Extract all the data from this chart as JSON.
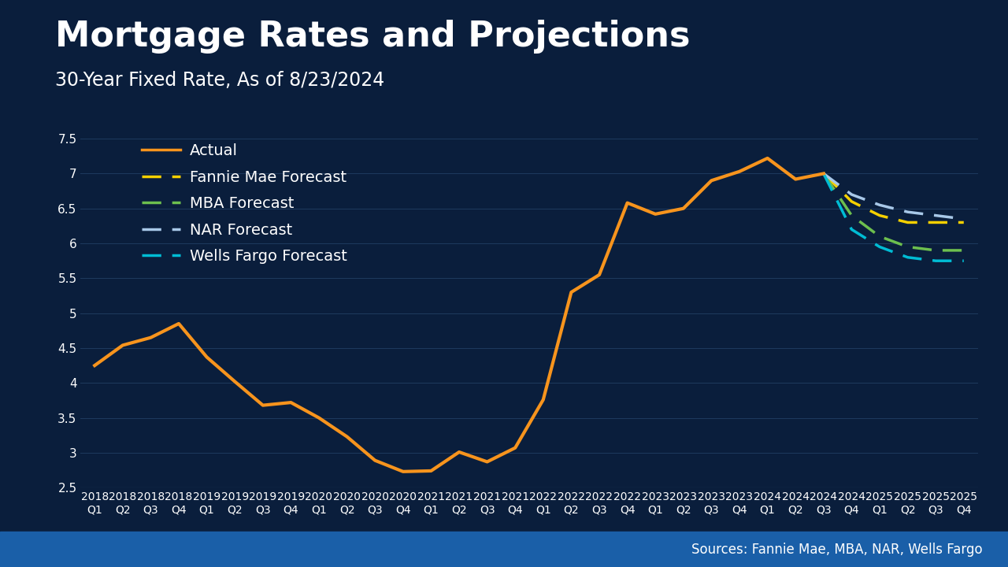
{
  "title": "Mortgage Rates and Projections",
  "subtitle": "30-Year Fixed Rate, As of 8/23/2024",
  "source": "Sources: Fannie Mae, MBA, NAR, Wells Fargo",
  "background_color": "#0a1e3c",
  "text_color": "#ffffff",
  "actual_color": "#f7941d",
  "fannie_color": "#f5d000",
  "mba_color": "#6dbf4e",
  "nar_color": "#a8c8e8",
  "wells_color": "#00bcd4",
  "quarters": [
    "2018\nQ1",
    "2018\nQ2",
    "2018\nQ3",
    "2018\nQ4",
    "2019\nQ1",
    "2019\nQ2",
    "2019\nQ3",
    "2019\nQ4",
    "2020\nQ1",
    "2020\nQ2",
    "2020\nQ3",
    "2020\nQ4",
    "2021\nQ1",
    "2021\nQ2",
    "2021\nQ3",
    "2021\nQ4",
    "2022\nQ1",
    "2022\nQ2",
    "2022\nQ3",
    "2022\nQ4",
    "2023\nQ1",
    "2023\nQ2",
    "2023\nQ3",
    "2023\nQ4",
    "2024\nQ1",
    "2024\nQ2",
    "2024\nQ3",
    "2024\nQ4",
    "2025\nQ1",
    "2025\nQ2",
    "2025\nQ3",
    "2025\nQ4"
  ],
  "actual_x": [
    0,
    1,
    2,
    3,
    4,
    5,
    6,
    7,
    8,
    9,
    10,
    11,
    12,
    13,
    14,
    15,
    16,
    17,
    18,
    19,
    20,
    21,
    22,
    23,
    24,
    25,
    26
  ],
  "actual_y": [
    4.25,
    4.54,
    4.65,
    4.85,
    4.37,
    4.02,
    3.68,
    3.72,
    3.5,
    3.23,
    2.89,
    2.73,
    2.74,
    3.01,
    2.87,
    3.07,
    3.76,
    5.3,
    5.55,
    6.58,
    6.42,
    6.5,
    6.9,
    7.03,
    7.22,
    6.92,
    7.0
  ],
  "fannie_x": [
    26,
    27,
    28,
    29,
    30,
    31
  ],
  "fannie_y": [
    7.0,
    6.6,
    6.4,
    6.3,
    6.3,
    6.3
  ],
  "mba_x": [
    26,
    27,
    28,
    29,
    30,
    31
  ],
  "mba_y": [
    7.0,
    6.4,
    6.1,
    5.95,
    5.9,
    5.9
  ],
  "nar_x": [
    26,
    27,
    28,
    29,
    30,
    31
  ],
  "nar_y": [
    7.0,
    6.7,
    6.55,
    6.45,
    6.4,
    6.35
  ],
  "wells_x": [
    26,
    27,
    28,
    29,
    30,
    31
  ],
  "wells_y": [
    7.0,
    6.2,
    5.95,
    5.8,
    5.75,
    5.75
  ],
  "ylim": [
    2.5,
    7.7
  ],
  "yticks": [
    2.5,
    3.0,
    3.5,
    4.0,
    4.5,
    5.0,
    5.5,
    6.0,
    6.5,
    7.0,
    7.5
  ],
  "title_fontsize": 32,
  "subtitle_fontsize": 17,
  "legend_fontsize": 14,
  "tick_fontsize": 10,
  "source_fontsize": 12,
  "footer_color": "#1a5fa8"
}
